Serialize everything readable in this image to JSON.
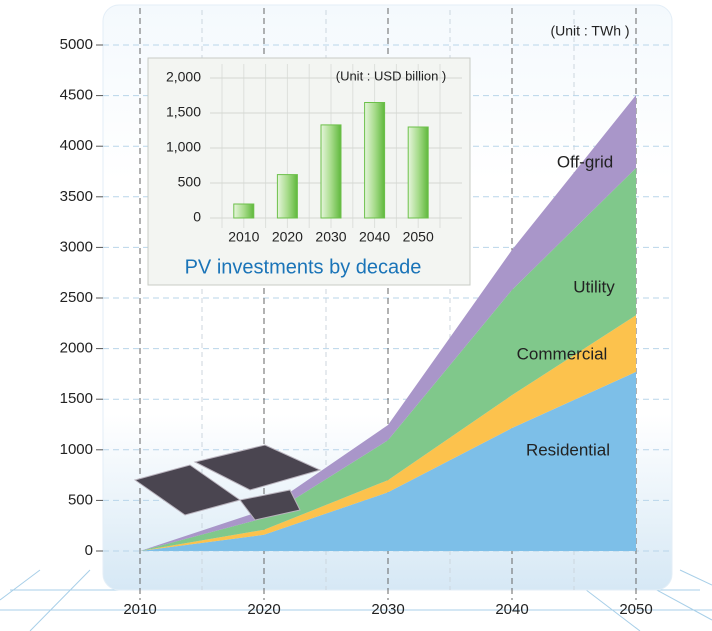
{
  "chart_data": [
    {
      "type": "area",
      "stacked": true,
      "unit": "(Unit : TWh )",
      "x": [
        2010,
        2020,
        2030,
        2040,
        2050
      ],
      "xlim": [
        2010,
        2050
      ],
      "xticks": [
        2010,
        2020,
        2030,
        2040,
        2050
      ],
      "ylim": [
        0,
        5000
      ],
      "yticks": [
        0,
        500,
        1000,
        1500,
        2000,
        2500,
        3000,
        3500,
        4000,
        4500,
        5000
      ],
      "grid": true,
      "series": [
        {
          "name": "Residential",
          "color": "#7dbfe8",
          "values": [
            0,
            160,
            580,
            1215,
            1770
          ]
        },
        {
          "name": "Commercial",
          "color": "#fcc24d",
          "values": [
            0,
            50,
            120,
            325,
            560
          ]
        },
        {
          "name": "Utility",
          "color": "#80c88b",
          "values": [
            0,
            115,
            395,
            1040,
            1455
          ]
        },
        {
          "name": "Off-grid",
          "color": "#a996c9",
          "values": [
            0,
            80,
            150,
            395,
            720
          ]
        }
      ]
    },
    {
      "type": "bar",
      "title": "PV investments by decade",
      "unit": "(Unit : USD billion )",
      "categories": [
        "2010",
        "2020",
        "2030",
        "2040",
        "2050"
      ],
      "values": [
        200,
        620,
        1330,
        1650,
        1300
      ],
      "color": "#6cc04a",
      "ylim": [
        0,
        2000
      ],
      "yticks": [
        0,
        500,
        {
          "value": 1000,
          "label": "1,000"
        },
        {
          "value": 1500,
          "label": "1,500"
        },
        {
          "value": 2000,
          "label": "2,000"
        }
      ],
      "grid": true
    }
  ]
}
